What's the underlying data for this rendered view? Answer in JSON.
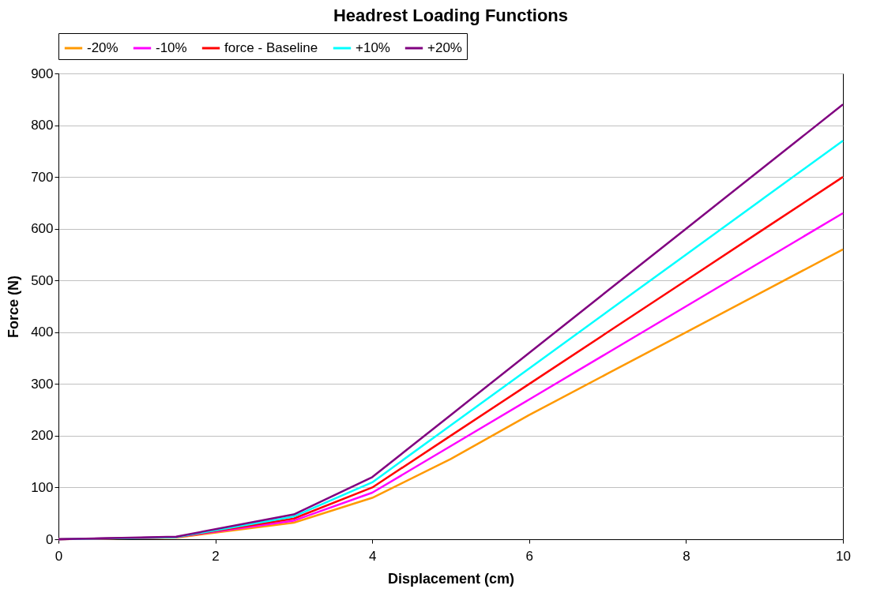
{
  "chart_data": {
    "type": "line",
    "title": "Headrest Loading Functions",
    "xlabel": "Displacement (cm)",
    "ylabel": "Force (N)",
    "x": [
      0,
      1.5,
      3,
      4,
      5,
      6,
      7,
      8,
      9,
      10
    ],
    "series": [
      {
        "name": "-20%",
        "color": "#ff9900",
        "values": [
          0,
          3,
          32,
          80,
          155,
          240,
          320,
          400,
          480,
          560
        ]
      },
      {
        "name": "-10%",
        "color": "#ff00ff",
        "values": [
          0,
          4,
          36,
          90,
          180,
          270,
          360,
          450,
          540,
          630
        ]
      },
      {
        "name": "force - Baseline",
        "color": "#ff0000",
        "values": [
          0,
          4,
          40,
          100,
          200,
          300,
          400,
          500,
          600,
          700
        ]
      },
      {
        "name": "+10%",
        "color": "#00ffff",
        "values": [
          0,
          4,
          44,
          110,
          220,
          330,
          440,
          550,
          660,
          770
        ]
      },
      {
        "name": "+20%",
        "color": "#800080",
        "values": [
          0,
          5,
          48,
          120,
          240,
          360,
          480,
          600,
          720,
          840
        ]
      }
    ],
    "xlim": [
      0,
      10
    ],
    "xticks": [
      0,
      2,
      4,
      6,
      8,
      10
    ],
    "ylim": [
      0,
      900
    ],
    "yticks": [
      0,
      100,
      200,
      300,
      400,
      500,
      600,
      700,
      800,
      900
    ],
    "grid": "y",
    "legend": "top",
    "marker": "none",
    "line_style": "solid"
  }
}
